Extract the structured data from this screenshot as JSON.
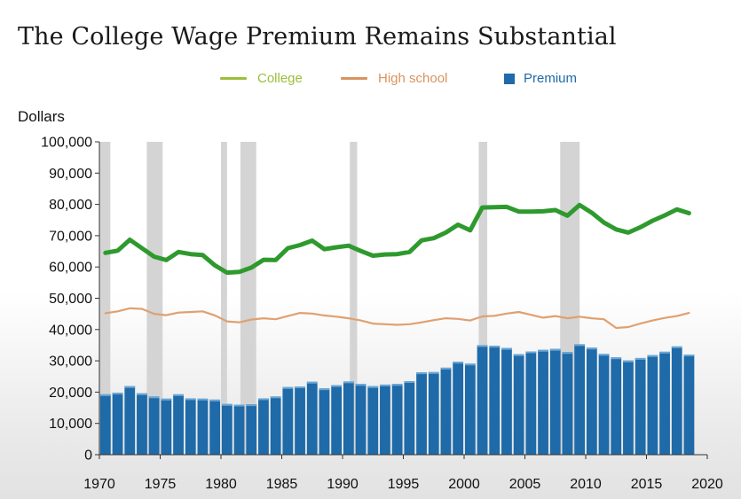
{
  "chart_data": {
    "type": "bar",
    "title": "The College Wage Premium Remains Substantial",
    "ylabel": "Dollars",
    "xlabel": "",
    "xlim": [
      1970,
      2020
    ],
    "ylim": [
      0,
      100000
    ],
    "x_ticks": [
      "1970",
      "1975",
      "1980",
      "1985",
      "1990",
      "1995",
      "2000",
      "2005",
      "2010",
      "2015",
      "2020"
    ],
    "y_ticks": [
      "0",
      "10,000",
      "20,000",
      "30,000",
      "40,000",
      "50,000",
      "60,000",
      "70,000",
      "80,000",
      "90,000",
      "100,000"
    ],
    "legend_position": "top",
    "grid": false,
    "years": [
      1970,
      1971,
      1972,
      1973,
      1974,
      1975,
      1976,
      1977,
      1978,
      1979,
      1980,
      1981,
      1982,
      1983,
      1984,
      1985,
      1986,
      1987,
      1988,
      1989,
      1990,
      1991,
      1992,
      1993,
      1994,
      1995,
      1996,
      1997,
      1998,
      1999,
      2000,
      2001,
      2002,
      2003,
      2004,
      2005,
      2006,
      2007,
      2008,
      2009,
      2010,
      2011,
      2012,
      2013,
      2014,
      2015,
      2016,
      2017,
      2018
    ],
    "series": [
      {
        "name": "College",
        "kind": "line",
        "color": "#2e9a2e",
        "legend_color": "#9bbf3a",
        "values": [
          64500,
          65200,
          68700,
          66000,
          63300,
          62200,
          64800,
          64100,
          63800,
          60500,
          58200,
          58400,
          59800,
          62300,
          62200,
          66000,
          67000,
          68400,
          65700,
          66300,
          66800,
          65100,
          63600,
          64000,
          64100,
          64800,
          68500,
          69200,
          71000,
          73500,
          71700,
          79000,
          79100,
          79200,
          77700,
          77700,
          77800,
          78200,
          76400,
          79800,
          77300,
          74200,
          72000,
          71000,
          72700,
          74800,
          76500,
          78400,
          77200
        ]
      },
      {
        "name": "High school",
        "kind": "line",
        "color": "#e0a070",
        "values": [
          45200,
          45800,
          46800,
          46600,
          45000,
          44600,
          45400,
          45600,
          45800,
          44500,
          42600,
          42300,
          43200,
          43600,
          43300,
          44300,
          45300,
          45100,
          44500,
          44100,
          43600,
          42900,
          41900,
          41700,
          41500,
          41700,
          42300,
          43000,
          43600,
          43400,
          42900,
          44200,
          44400,
          45100,
          45600,
          44700,
          43800,
          44300,
          43600,
          44100,
          43600,
          43300,
          40500,
          40800,
          41900,
          42900,
          43700,
          44300,
          45300
        ]
      },
      {
        "name": "Premium",
        "kind": "bar",
        "color": "#1f6aa8",
        "values": [
          19300,
          19800,
          21900,
          19600,
          18600,
          17900,
          19300,
          18000,
          17900,
          17600,
          16200,
          16000,
          16100,
          18000,
          18600,
          21600,
          21800,
          23300,
          21200,
          22200,
          23400,
          22600,
          21900,
          22400,
          22600,
          23500,
          26300,
          26400,
          27800,
          29700,
          29100,
          35000,
          34800,
          34100,
          32100,
          33000,
          33500,
          33800,
          32800,
          35300,
          34200,
          32200,
          31100,
          30100,
          30900,
          31800,
          32900,
          34600,
          32000
        ]
      }
    ],
    "recession_shading": [
      [
        1970.0,
        1970.9
      ],
      [
        1973.9,
        1975.2
      ],
      [
        1980.0,
        1980.5
      ],
      [
        1981.6,
        1982.9
      ],
      [
        1990.6,
        1991.2
      ],
      [
        2001.2,
        2001.9
      ],
      [
        2007.9,
        2009.5
      ]
    ]
  }
}
